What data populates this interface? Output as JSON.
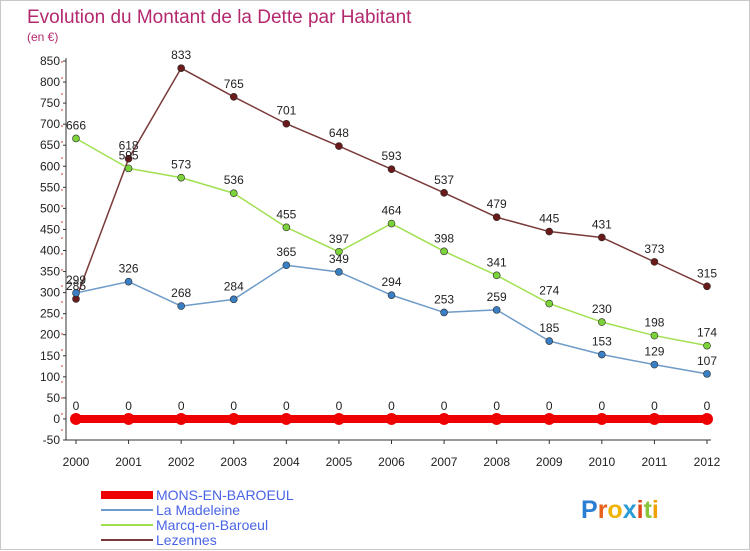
{
  "chart_data": {
    "type": "line",
    "title": "Evolution du Montant de la Dette par Habitant",
    "subtitle": "(en €)",
    "xlabel": "",
    "ylabel": "",
    "x": [
      "2000",
      "2001",
      "2002",
      "2003",
      "2004",
      "2005",
      "2006",
      "2007",
      "2008",
      "2009",
      "2010",
      "2011",
      "2012"
    ],
    "ylim": [
      -50,
      850
    ],
    "yticks": [
      -50,
      0,
      50,
      100,
      150,
      200,
      250,
      300,
      350,
      400,
      450,
      500,
      550,
      600,
      650,
      700,
      750,
      800,
      850
    ],
    "grid": false,
    "legend_position": "bottom-left",
    "series": [
      {
        "name": "MONS-EN-BAROEUL",
        "color": "#ee0000",
        "values": [
          0,
          0,
          0,
          0,
          0,
          0,
          0,
          0,
          0,
          0,
          0,
          0,
          0
        ]
      },
      {
        "name": "La Madeleine",
        "color": "#6e9bc8",
        "marker": "#3a7fc4",
        "values": [
          299,
          326,
          268,
          284,
          365,
          349,
          294,
          253,
          259,
          185,
          153,
          129,
          107
        ]
      },
      {
        "name": "Marcq-en-Baroeul",
        "color": "#a0e050",
        "marker": "#7cd23a",
        "values": [
          666,
          595,
          573,
          536,
          455,
          397,
          464,
          398,
          341,
          274,
          230,
          198,
          174
        ]
      },
      {
        "name": "Lezennes",
        "color": "#7a3a3a",
        "marker": "#6a1a1a",
        "values": [
          285,
          618,
          833,
          765,
          701,
          648,
          593,
          537,
          479,
          445,
          431,
          373,
          315
        ]
      }
    ]
  },
  "logo": {
    "text": "Proxiti"
  }
}
